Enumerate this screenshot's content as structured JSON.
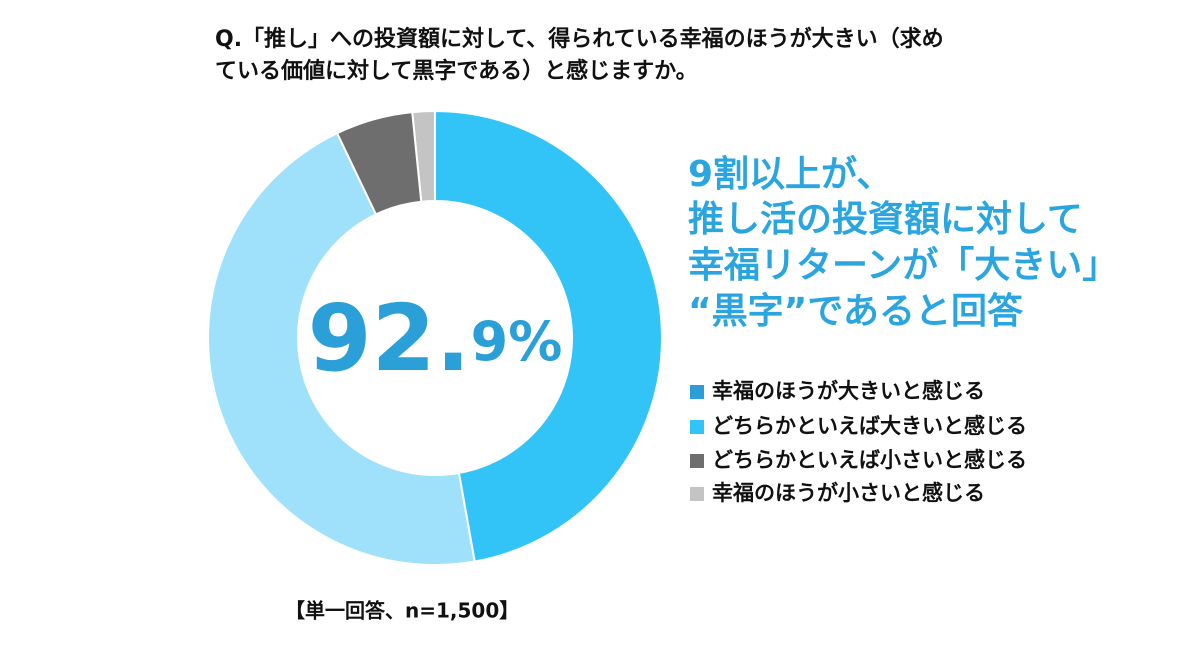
{
  "chart_data": {
    "type": "donut",
    "title_lines": [
      "Q.「推し」への投資額に対して、得られている幸福のほうが大きい（求め",
      "ている価値に対して黒字である）と感じますか。"
    ],
    "center_label_main": "92.",
    "center_label_rest": "9%",
    "callout_lines": [
      "9割以上が、",
      "推し活の投資額に対して",
      "幸福リターンが「大きい」",
      "“黒字”であると回答"
    ],
    "note": "【単一回答、n=1,500】",
    "categories": [
      "幸福のほうが大きいと感じる",
      "どちらかといえば大きいと感じる",
      "どちらかといえば小さいと感じる",
      "幸福のほうが小さいと感じる"
    ],
    "values": [
      47.2,
      45.7,
      5.5,
      1.6
    ],
    "colors": [
      "#33c4f7",
      "#9fe0fb",
      "#6e6e6e",
      "#c4c4c4"
    ],
    "legend_colors": [
      "#2b9ed8",
      "#33c4f7",
      "#6e6e6e",
      "#c4c4c4"
    ]
  }
}
